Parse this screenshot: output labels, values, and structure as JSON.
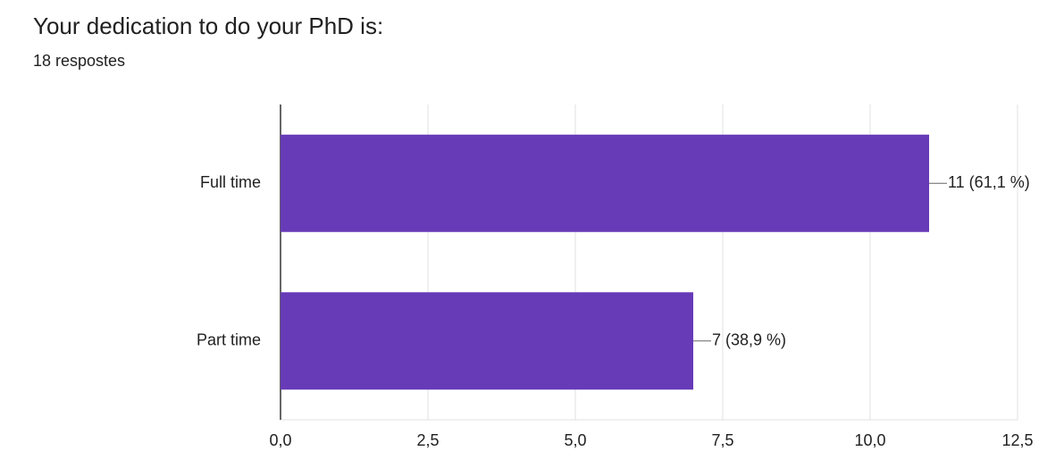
{
  "chart_data": {
    "type": "bar",
    "horizontal": true,
    "title": "Your dedication to do your PhD is:",
    "subtitle": "18 respostes",
    "categories": [
      "Full time",
      "Part time"
    ],
    "values": [
      11,
      7
    ],
    "value_labels": [
      "11 (61,1 %)",
      "7 (38,9 %)"
    ],
    "color": "#673ab7",
    "xlim": [
      0,
      12.5
    ],
    "xticks": [
      {
        "value": 0,
        "label": "0,0"
      },
      {
        "value": 2.5,
        "label": "2,5"
      },
      {
        "value": 5,
        "label": "5,0"
      },
      {
        "value": 7.5,
        "label": "7,5"
      },
      {
        "value": 10,
        "label": "10,0"
      },
      {
        "value": 12.5,
        "label": "12,5"
      }
    ],
    "grid": true
  }
}
